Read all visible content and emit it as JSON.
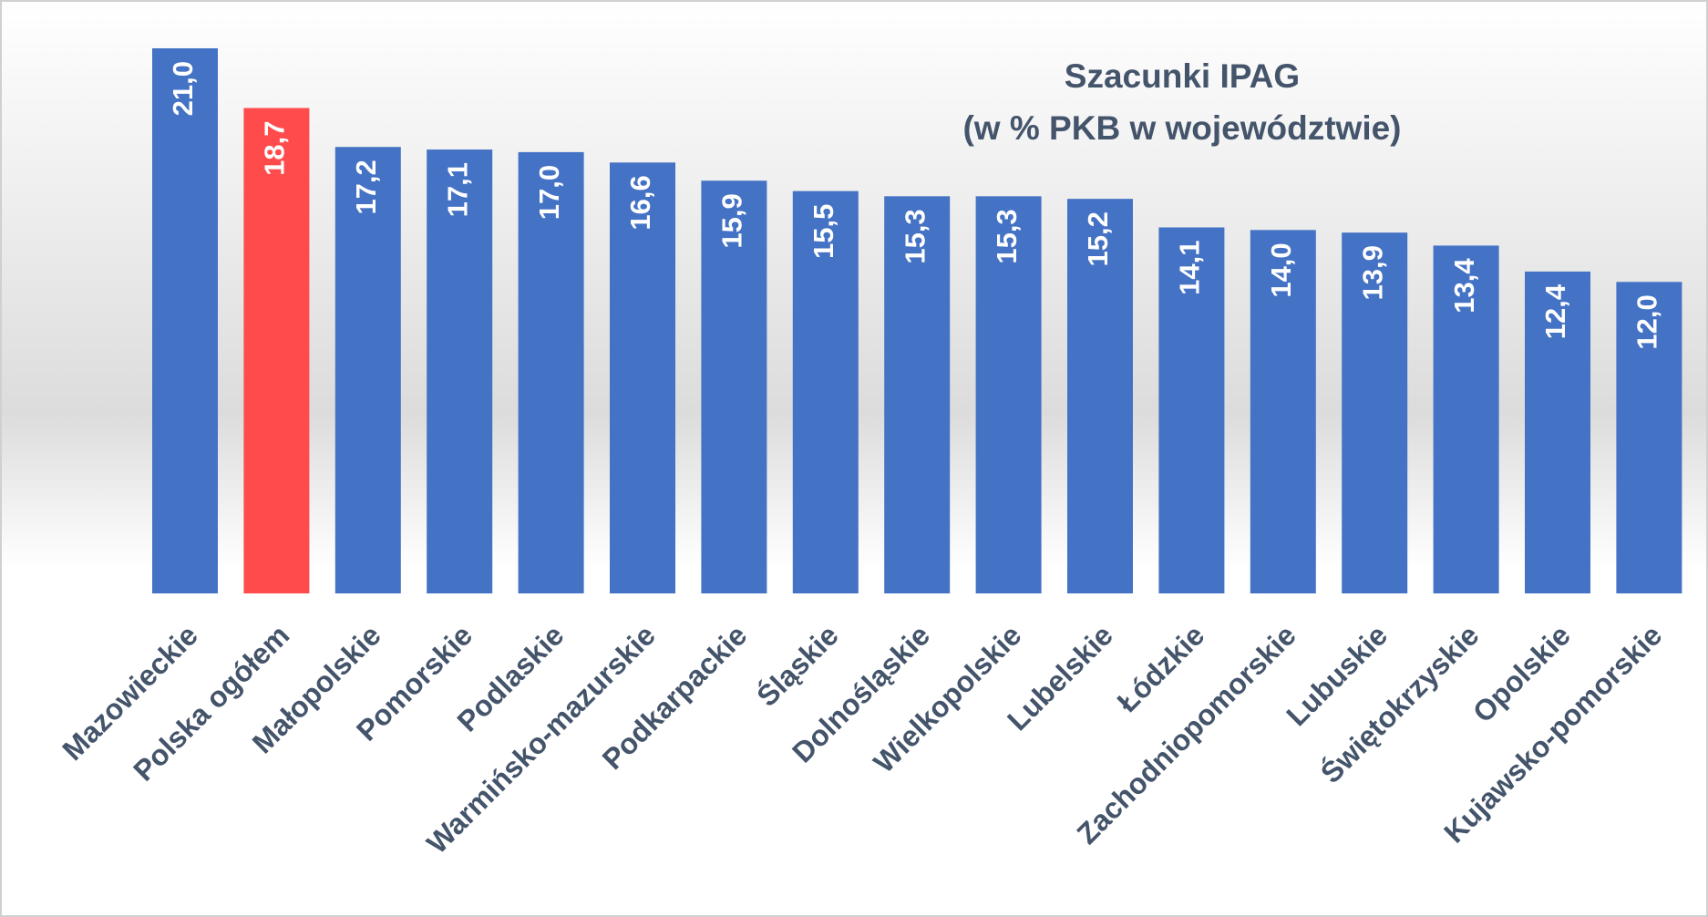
{
  "chart_data": {
    "type": "bar",
    "title": "Szacunki IPAG",
    "subtitle": "(w % PKB w województwie)",
    "categories": [
      "Mazowieckie",
      "Polska ogółem",
      "Małopolskie",
      "Pomorskie",
      "Podlaskie",
      "Warmińsko-mazurskie",
      "Podkarpackie",
      "Śląskie",
      "Dolnośląskie",
      "Wielkopolskie",
      "Lubelskie",
      "Łódzkie",
      "Zachodniopomorskie",
      "Lubuskie",
      "Świętokrzyskie",
      "Opolskie",
      "Kujawsko-pomorskie"
    ],
    "values": [
      21.0,
      18.7,
      17.2,
      17.1,
      17.0,
      16.6,
      15.9,
      15.5,
      15.3,
      15.3,
      15.2,
      14.1,
      14.0,
      13.9,
      13.4,
      12.4,
      12.0
    ],
    "value_labels": [
      "21,0",
      "18,7",
      "17,2",
      "17,1",
      "17,0",
      "16,6",
      "15,9",
      "15,5",
      "15,3",
      "15,3",
      "15,2",
      "14,1",
      "14,0",
      "13,9",
      "13,4",
      "12,4",
      "12,0"
    ],
    "colors": [
      "#4472c4",
      "#ff4b4b",
      "#4472c4",
      "#4472c4",
      "#4472c4",
      "#4472c4",
      "#4472c4",
      "#4472c4",
      "#4472c4",
      "#4472c4",
      "#4472c4",
      "#4472c4",
      "#4472c4",
      "#4472c4",
      "#4472c4",
      "#4472c4",
      "#4472c4"
    ]
  }
}
